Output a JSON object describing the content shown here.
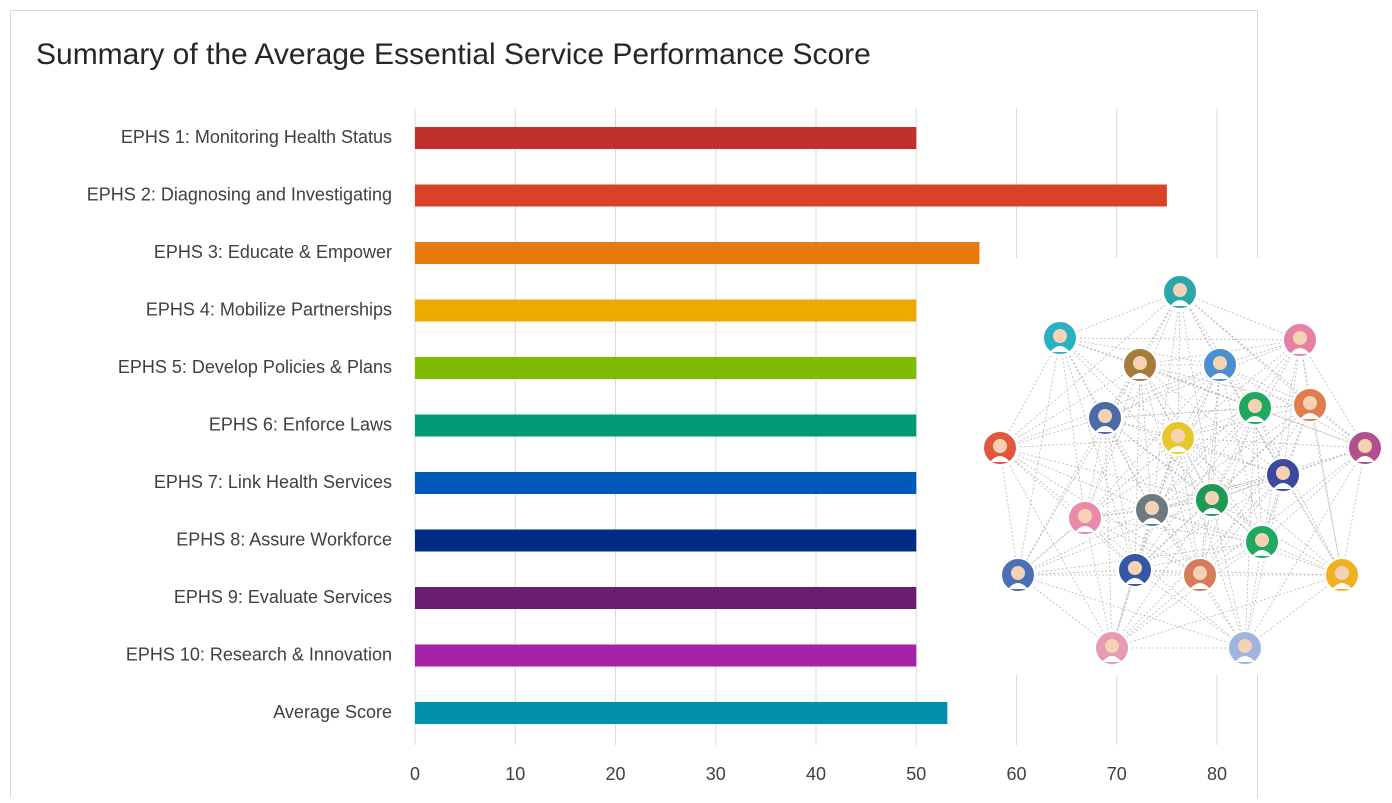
{
  "chart_data": {
    "type": "bar",
    "orientation": "horizontal",
    "title": "Summary of the Average Essential Service Performance Score",
    "categories": [
      "EPHS 1: Monitoring Health Status",
      "EPHS 2: Diagnosing and Investigating",
      "EPHS 3: Educate & Empower",
      "EPHS 4: Mobilize Partnerships",
      "EPHS 5: Develop Policies & Plans",
      "EPHS 6: Enforce Laws",
      "EPHS 7: Link Health Services",
      "EPHS 8: Assure Workforce",
      "EPHS 9: Evaluate Services",
      "EPHS 10: Research & Innovation",
      "Average Score"
    ],
    "values": [
      50,
      75,
      56.3,
      50,
      50,
      50,
      50,
      50,
      50,
      50,
      53.1
    ],
    "colors": [
      "#c0302e",
      "#d84226",
      "#e8790c",
      "#ebaa00",
      "#80bb00",
      "#009b76",
      "#0058b9",
      "#002c84",
      "#6a1e6f",
      "#a620a8",
      "#0090ab"
    ],
    "xlim": [
      0,
      80
    ],
    "xticks": [
      0,
      10,
      20,
      30,
      40,
      50,
      60,
      70,
      80
    ],
    "grid": true
  }
}
